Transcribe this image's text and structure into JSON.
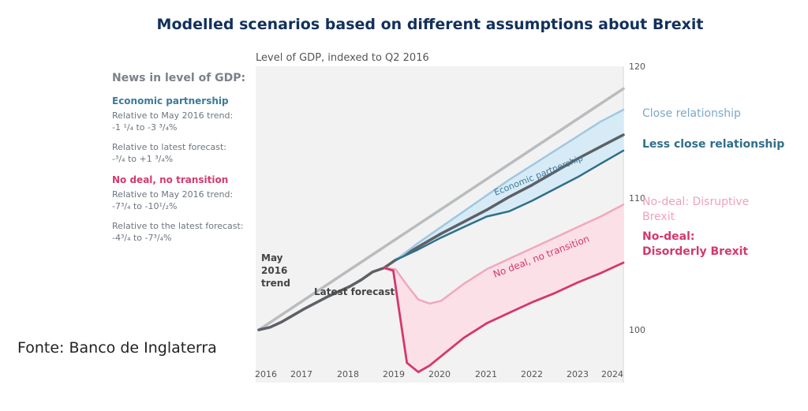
{
  "title": "Modelled scenarios based on different assumptions about Brexit",
  "source": "Fonte: Banco de Inglaterra",
  "sidebar": {
    "heading": "News in level of GDP:",
    "groups": [
      {
        "title": "Economic partnership",
        "lines": [
          "Relative to May 2016 trend:",
          "-1 ¹/₄ to -3 ³/₄%",
          "Relative to latest forecast:",
          "-³/₄ to +1 ³/₄%"
        ]
      },
      {
        "title": "No deal, no transition",
        "lines": [
          "Relative to May 2016 trend:",
          "-7³/₄ to -10¹/₂%",
          "Relative to the latest forecast:",
          "-4³/₄ to -7³/₄%"
        ]
      }
    ]
  },
  "colors": {
    "trend": "#b9bcbf",
    "latest": "#5d6066",
    "close": "#9fc8e0",
    "less_close": "#2f6f8a",
    "ep_fill": "#d7ebf6",
    "disruptive": "#f2a7bd",
    "disorderly": "#d4386a",
    "nd_fill": "#fbe0e8",
    "title": "#12305c"
  },
  "chart_data": {
    "type": "line",
    "subtitle": "Level of GDP, indexed to Q2 2016",
    "xlabels": [
      "2016",
      "2017",
      "2018",
      "2019",
      "2020",
      "2021",
      "2022",
      "2023",
      "2024"
    ],
    "xlim": [
      2016.0,
      2024.0
    ],
    "ylim": [
      96,
      120
    ],
    "yticks": [
      100,
      110,
      120
    ],
    "series": [
      {
        "name": "May 2016 trend",
        "x": [
          2016.0,
          2024.0
        ],
        "y": [
          100.0,
          118.3
        ]
      },
      {
        "name": "Latest forecast",
        "x": [
          2016.0,
          2016.25,
          2016.5,
          2016.75,
          2017.0,
          2017.5,
          2018.0,
          2018.25,
          2018.5,
          2018.75,
          2019.0,
          2019.5,
          2020.0,
          2020.5,
          2021.0,
          2021.5,
          2022.0,
          2022.5,
          2023.0,
          2023.5,
          2024.0
        ],
        "y": [
          100.0,
          100.2,
          100.6,
          101.1,
          101.6,
          102.5,
          103.3,
          103.8,
          104.4,
          104.7,
          105.3,
          106.3,
          107.3,
          108.2,
          109.1,
          110.1,
          111.0,
          112.0,
          113.0,
          113.9,
          114.8
        ]
      },
      {
        "name": "Close relationship",
        "x": [
          2019.0,
          2019.5,
          2020.0,
          2020.5,
          2021.0,
          2021.5,
          2022.0,
          2022.5,
          2023.0,
          2023.5,
          2024.0
        ],
        "y": [
          105.3,
          106.6,
          107.8,
          109.0,
          110.2,
          111.4,
          112.5,
          113.6,
          114.7,
          115.8,
          116.7
        ]
      },
      {
        "name": "Less close relationship",
        "x": [
          2019.0,
          2019.5,
          2020.0,
          2020.5,
          2021.0,
          2021.5,
          2022.0,
          2022.5,
          2023.0,
          2023.5,
          2024.0
        ],
        "y": [
          105.3,
          106.1,
          107.0,
          107.8,
          108.6,
          109.0,
          109.8,
          110.7,
          111.6,
          112.6,
          113.6
        ]
      },
      {
        "name": "No-deal: Disruptive Brexit",
        "x": [
          2018.75,
          2019.0,
          2019.25,
          2019.5,
          2019.75,
          2020.0,
          2020.5,
          2021.0,
          2021.5,
          2022.0,
          2022.5,
          2023.0,
          2023.5,
          2024.0
        ],
        "y": [
          104.7,
          104.6,
          103.4,
          102.3,
          102.0,
          102.2,
          103.5,
          104.6,
          105.4,
          106.2,
          107.0,
          107.8,
          108.6,
          109.5
        ]
      },
      {
        "name": "No-deal: Disorderly Brexit",
        "x": [
          2018.75,
          2018.95,
          2019.1,
          2019.25,
          2019.5,
          2019.75,
          2020.0,
          2020.5,
          2021.0,
          2021.5,
          2022.0,
          2022.5,
          2023.0,
          2023.5,
          2024.0
        ],
        "y": [
          104.7,
          104.5,
          101.0,
          97.5,
          96.8,
          97.3,
          98.0,
          99.4,
          100.5,
          101.3,
          102.1,
          102.8,
          103.6,
          104.3,
          105.1
        ]
      }
    ],
    "series_labels": [
      "Close relationship",
      "Less close relationship",
      "No-deal: Disruptive",
      "Brexit",
      "No-deal:",
      "Disorderly Brexit"
    ],
    "annotations": {
      "trend": [
        "May",
        "2016",
        "trend"
      ],
      "latest": "Latest forecast",
      "economic_partnership": "Economic partnership",
      "no_deal": "No deal, no transition"
    }
  }
}
